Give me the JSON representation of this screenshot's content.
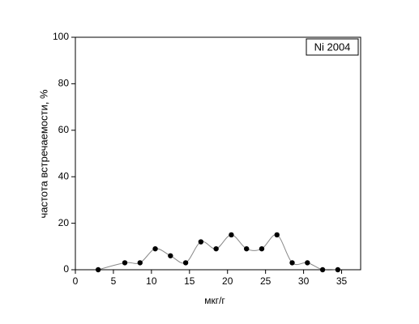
{
  "chart_data": {
    "type": "scatter",
    "annotation": "Ni 2004",
    "x_label": "мкг/г",
    "y_label": "частота встречаемости, %",
    "series": [
      {
        "color": "#000000",
        "x": [
          3,
          6.5,
          8.5,
          10.5,
          12.5,
          14.5,
          16.5,
          18.5,
          20.5,
          22.5,
          24.5,
          26.5,
          28.5,
          30.5,
          32.5,
          34.5
        ],
        "values": [
          0,
          3,
          3,
          9,
          6,
          3,
          12,
          9,
          15,
          9,
          9,
          15,
          3,
          3,
          0,
          0
        ]
      }
    ],
    "line_color": "#888888",
    "xlim": [
      0,
      37.5
    ],
    "xticks": [
      0,
      5,
      10,
      15,
      20,
      25,
      30,
      35
    ],
    "ylim": [
      0,
      100
    ],
    "yticks": [
      0,
      20,
      40,
      60,
      80,
      100
    ]
  }
}
